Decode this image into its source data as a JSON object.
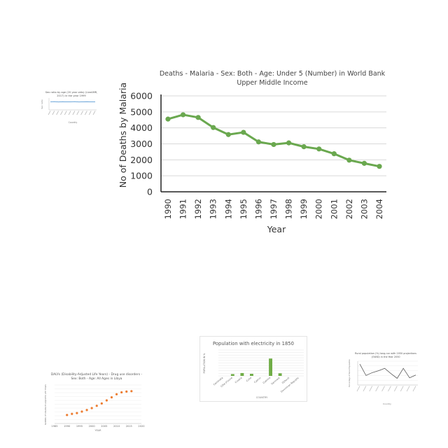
{
  "chart_data": [
    {
      "id": "malaria",
      "type": "line",
      "title_lines": [
        "Deaths - Malaria - Sex: Both - Age: Under 5 (Number) in World Bank",
        "Upper Middle Income"
      ],
      "xlabel": "Year",
      "ylabel": "No of Deaths by Malaria",
      "ylim": [
        0,
        6000
      ],
      "yticks": [
        0,
        1000,
        2000,
        3000,
        4000,
        5000,
        6000
      ],
      "grid": true,
      "color": "#6aa84f",
      "categories": [
        "1990",
        "1991",
        "1992",
        "1993",
        "1994",
        "1995",
        "1996",
        "1997",
        "1998",
        "1999",
        "2000",
        "2001",
        "2002",
        "2003",
        "2004"
      ],
      "values": [
        4550,
        4820,
        4650,
        4020,
        3580,
        3720,
        3120,
        2960,
        3060,
        2820,
        2680,
        2380,
        1980,
        1780,
        1590
      ]
    },
    {
      "id": "sex-ratio",
      "type": "line",
      "title_lines": [
        "Sex ratio by age (20 year olds) (LiveAMR,",
        "2017) in the year 1999"
      ],
      "xlabel": "Country",
      "ylabel": "Sex ratio",
      "ylim": [
        0,
        150
      ],
      "grid": false,
      "color": "#5b9bd5",
      "categories": [
        "c1",
        "c2",
        "c3",
        "c4",
        "c5",
        "c6",
        "c7",
        "c8",
        "c9",
        "c10",
        "c11",
        "c12"
      ],
      "values": [
        102,
        104,
        100,
        103,
        101,
        102,
        104,
        100,
        102,
        103,
        101,
        102
      ]
    },
    {
      "id": "dalys",
      "type": "scatter",
      "title_lines": [
        "DALYs (Disability-Adjusted Life Years) - Drug use disorders -",
        "Sex: Both - Age: All Ages in Libya"
      ],
      "xlabel": "YEAR",
      "ylabel": "NUMBER OF DISABILITY-ADJUSTED LIFE YEARS",
      "xlim": [
        1985,
        2020
      ],
      "xticks": [
        1985,
        1990,
        1995,
        2000,
        2005,
        2010,
        2015,
        2020
      ],
      "ylim": [
        0,
        100
      ],
      "grid": true,
      "color": "#ed7d31",
      "x": [
        1990,
        1992,
        1994,
        1996,
        1998,
        2000,
        2002,
        2004,
        2006,
        2008,
        2010,
        2012,
        2014,
        2016
      ],
      "y": [
        22,
        25,
        27,
        31,
        35,
        40,
        46,
        52,
        60,
        68,
        76,
        81,
        83,
        84
      ]
    },
    {
      "id": "electricity",
      "type": "bar",
      "title_lines": [
        "Population with electricity in 1850"
      ],
      "xlabel": "COUNTRY",
      "ylabel": "POPULATION IN %",
      "ylim": [
        0,
        100
      ],
      "grid": true,
      "color": "#70ad47",
      "categories": [
        "Cambodia",
        "Côte d'Ivoire",
        "Croatia",
        "Cuba",
        "Cyprus",
        "Czechia",
        "Denmark",
        "Djibouti",
        "Dominican Republic"
      ],
      "values": [
        0,
        7,
        11,
        8,
        0,
        67,
        10,
        0,
        0
      ]
    },
    {
      "id": "rural-pop",
      "type": "line",
      "title_lines": [
        "Rural population (%) long-run with 2050 projections",
        "(OWID) in the Year 2050"
      ],
      "xlabel": "Country",
      "ylabel": "Percentage of Rural Population",
      "ylim": [
        0,
        100
      ],
      "grid": true,
      "color": "#595959",
      "categories": [
        "c1",
        "c2",
        "c3",
        "c4",
        "c5",
        "c6",
        "c7",
        "c8",
        "c9",
        "c10"
      ],
      "values": [
        88,
        40,
        52,
        60,
        70,
        48,
        28,
        70,
        30,
        42
      ]
    }
  ]
}
